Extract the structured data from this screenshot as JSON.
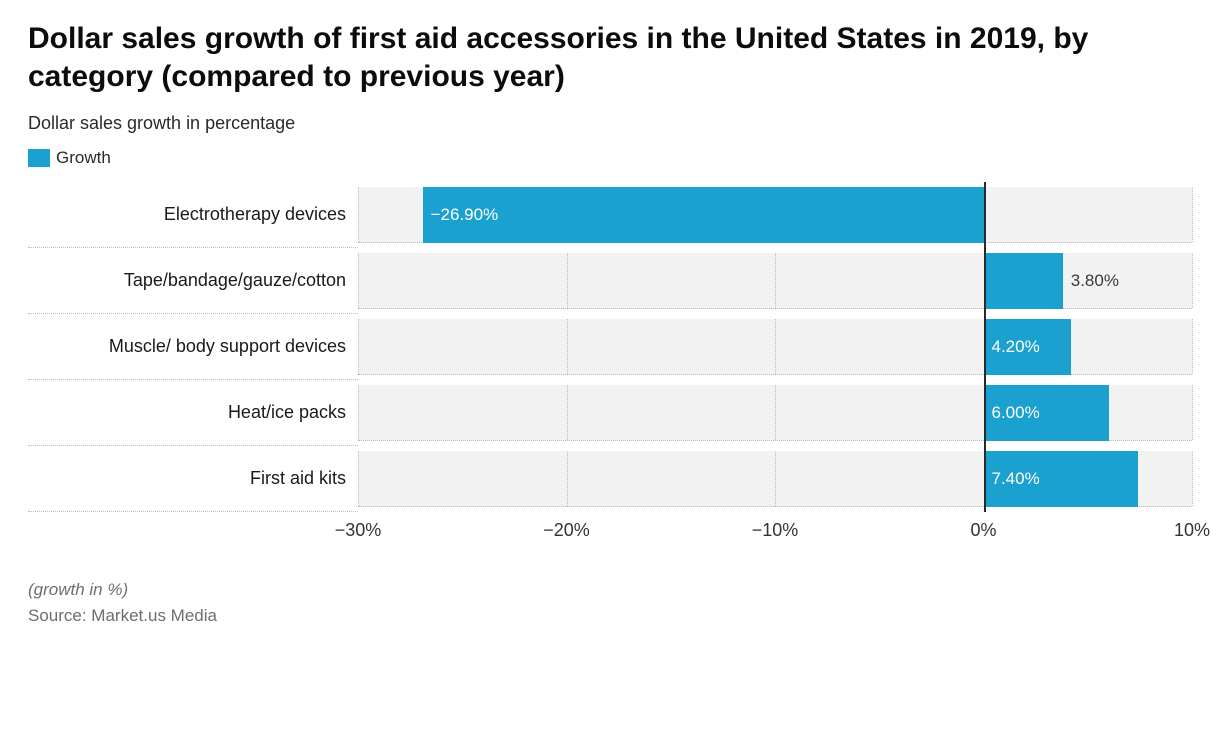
{
  "title": "Dollar sales growth of first aid accessories in the United States in 2019, by category (compared to previous year)",
  "subtitle": "Dollar sales growth in percentage",
  "legend": {
    "swatch_color": "#1aa1cf",
    "label": "Growth"
  },
  "chart": {
    "type": "bar-horizontal",
    "xlim": [
      -30,
      10
    ],
    "xticks": [
      -30,
      -20,
      -10,
      0,
      10
    ],
    "xtick_labels": [
      "−30%",
      "−20%",
      "−10%",
      "0%",
      "10%"
    ],
    "bar_color": "#1aa1cf",
    "row_bg": "#f2f2f2",
    "grid_color": "#bcbcbc",
    "zero_line_color": "#2a2a2a",
    "value_label_inside_color": "#ffffff",
    "value_label_outside_color": "#3a3a3a",
    "label_fontsize": 18,
    "value_fontsize": 17,
    "rows": [
      {
        "category": "Electrotherapy devices",
        "value": -26.9,
        "display": "−26.90%",
        "label_inside": true
      },
      {
        "category": "Tape/bandage/gauze/cotton",
        "value": 3.8,
        "display": "3.80%",
        "label_inside": false
      },
      {
        "category": "Muscle/ body support devices",
        "value": 4.2,
        "display": "4.20%",
        "label_inside": true
      },
      {
        "category": "Heat/ice packs",
        "value": 6.0,
        "display": "6.00%",
        "label_inside": true
      },
      {
        "category": "First aid kits",
        "value": 7.4,
        "display": "7.40%",
        "label_inside": true
      }
    ]
  },
  "footer": {
    "unit_note": "(growth in %)",
    "source": "Source: Market.us Media"
  }
}
